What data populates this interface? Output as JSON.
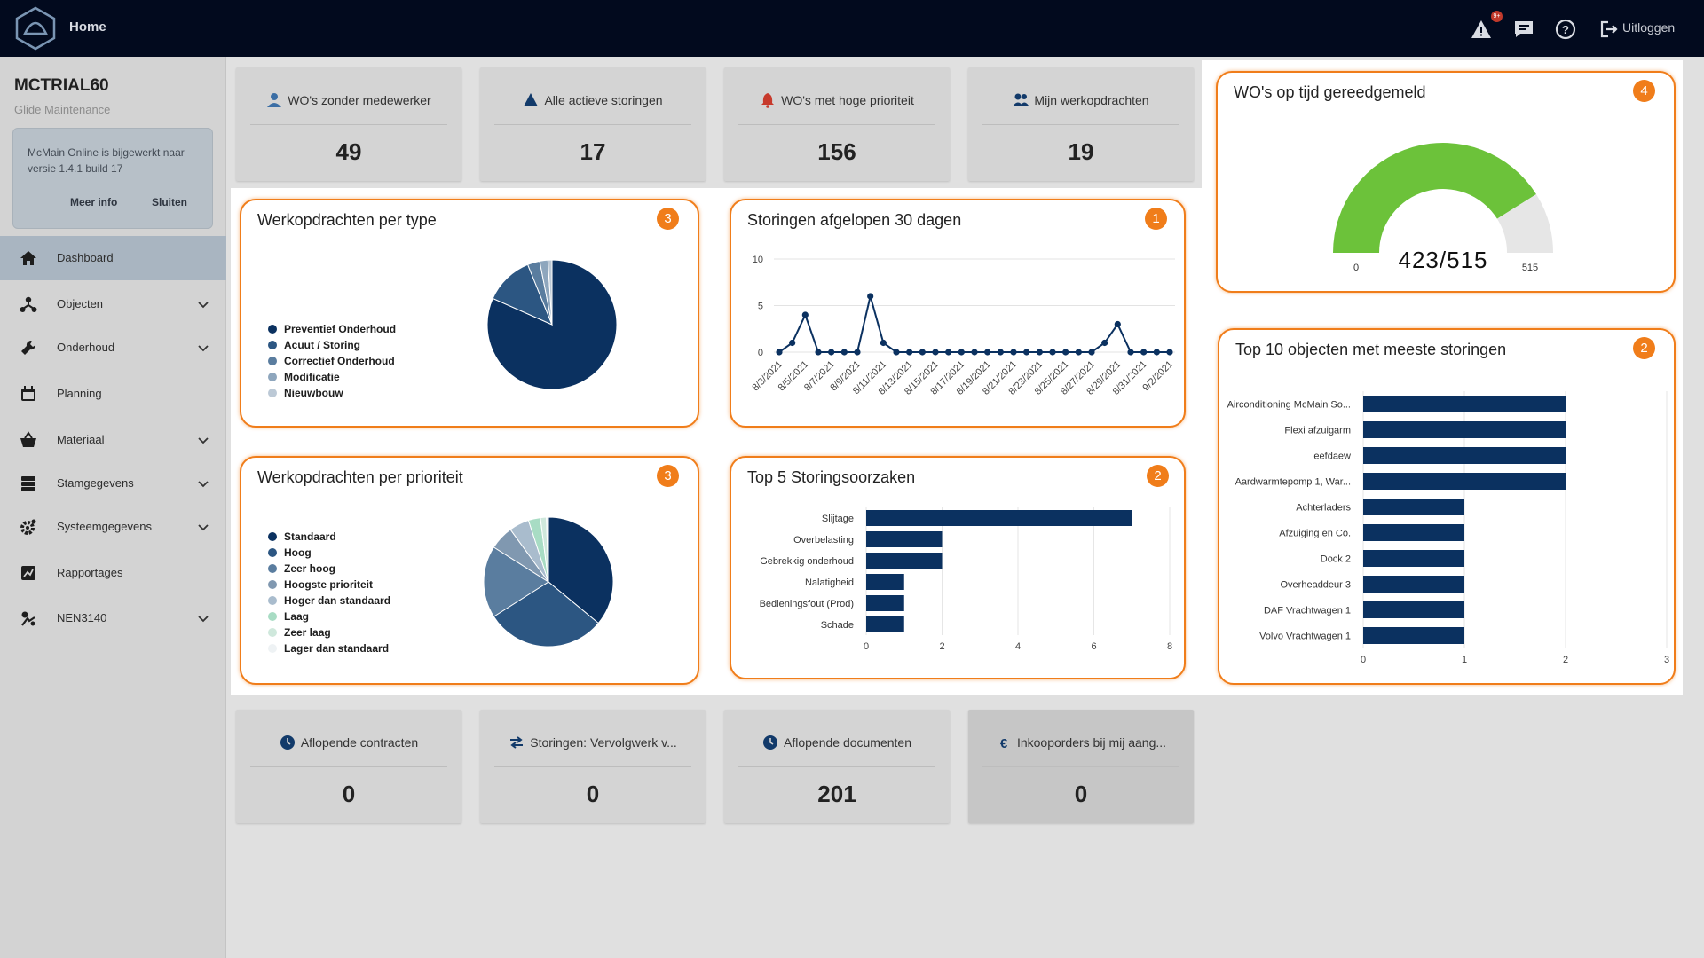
{
  "topbar": {
    "home_label": "Home",
    "notif_count": "9+",
    "logout_label": "Uitloggen"
  },
  "sidebar": {
    "org_name": "MCTRIAL60",
    "org_sub": "Glide Maintenance",
    "notice": {
      "text": "McMain Online is bijgewerkt naar versie 1.4.1 build 17",
      "more_label": "Meer info",
      "close_label": "Sluiten"
    },
    "items": [
      {
        "label": "Dashboard",
        "icon": "home-icon"
      },
      {
        "label": "Objecten",
        "icon": "hierarchy-icon"
      },
      {
        "label": "Onderhoud",
        "icon": "wrench-icon"
      },
      {
        "label": "Planning",
        "icon": "calendar-icon"
      },
      {
        "label": "Materiaal",
        "icon": "basket-icon"
      },
      {
        "label": "Stamgegevens",
        "icon": "database-icon"
      },
      {
        "label": "Systeemgegevens",
        "icon": "gear-icon"
      },
      {
        "label": "Rapportages",
        "icon": "report-icon"
      },
      {
        "label": "NEN3140",
        "icon": "nen-icon"
      }
    ]
  },
  "kpis_top": [
    {
      "title": "WO's zonder medewerker",
      "value": "49",
      "icon": "user-icon"
    },
    {
      "title": "Alle actieve storingen",
      "value": "17",
      "icon": "warning-icon"
    },
    {
      "title": "WO's met hoge prioriteit",
      "value": "156",
      "icon": "bell-icon"
    },
    {
      "title": "Mijn werkopdrachten",
      "value": "19",
      "icon": "people-icon"
    }
  ],
  "kpis_bottom": [
    {
      "title": "Aflopende contracten",
      "value": "0",
      "icon": "clock-icon"
    },
    {
      "title": "Storingen: Vervolgwerk v...",
      "value": "0",
      "icon": "arrows-icon"
    },
    {
      "title": "Aflopende documenten",
      "value": "201",
      "icon": "clock-icon"
    },
    {
      "title": "Inkooporders bij mij aang...",
      "value": "0",
      "icon": "euro-icon"
    }
  ],
  "cards": {
    "type": {
      "title": "Werkopdrachten per type",
      "badge": "3"
    },
    "storingen": {
      "title": "Storingen afgelopen 30 dagen",
      "badge": "1"
    },
    "ontime": {
      "title": "WO's op tijd gereedgemeld",
      "badge": "4"
    },
    "prioriteit": {
      "title": "Werkopdrachten per prioriteit",
      "badge": "3"
    },
    "oorzaken": {
      "title": "Top 5 Storingsoorzaken",
      "badge": "2"
    },
    "top10": {
      "title": "Top 10 objecten met meeste storingen",
      "badge": "2"
    }
  },
  "colors": {
    "accent": "#f07d1a",
    "navy": "#0b3160",
    "topbar": "#020a1e",
    "gauge_green": "#6cc23a"
  },
  "chart_data": [
    {
      "id": "type",
      "type": "pie",
      "title": "Werkopdrachten per type",
      "categories": [
        "Preventief Onderhoud",
        "Acuut / Storing",
        "Correctief Onderhoud",
        "Modificatie",
        "Nieuwbouw"
      ],
      "values": [
        80,
        12,
        3,
        2,
        1
      ],
      "colors": [
        "#0b3160",
        "#2c5682",
        "#5a7d9f",
        "#8ea6bd",
        "#bcc9d6"
      ]
    },
    {
      "id": "storingen",
      "type": "line",
      "title": "Storingen afgelopen 30 dagen",
      "x": [
        "8/3/2021",
        "8/4/2021",
        "8/5/2021",
        "8/6/2021",
        "8/7/2021",
        "8/8/2021",
        "8/9/2021",
        "8/10/2021",
        "8/11/2021",
        "8/12/2021",
        "8/13/2021",
        "8/14/2021",
        "8/15/2021",
        "8/16/2021",
        "8/17/2021",
        "8/18/2021",
        "8/19/2021",
        "8/20/2021",
        "8/21/2021",
        "8/22/2021",
        "8/23/2021",
        "8/24/2021",
        "8/25/2021",
        "8/26/2021",
        "8/27/2021",
        "8/28/2021",
        "8/29/2021",
        "8/30/2021",
        "8/31/2021",
        "9/1/2021",
        "9/2/2021"
      ],
      "xticks": [
        "8/3/2021",
        "8/5/2021",
        "8/7/2021",
        "8/9/2021",
        "8/11/2021",
        "8/13/2021",
        "8/15/2021",
        "8/17/2021",
        "8/19/2021",
        "8/21/2021",
        "8/23/2021",
        "8/25/2021",
        "8/27/2021",
        "8/29/2021",
        "8/31/2021",
        "9/2/2021"
      ],
      "values": [
        0,
        1,
        4,
        0,
        0,
        0,
        0,
        6,
        1,
        0,
        0,
        0,
        0,
        0,
        0,
        0,
        0,
        0,
        0,
        0,
        0,
        0,
        0,
        0,
        0,
        1,
        3,
        0,
        0,
        0,
        0
      ],
      "ylim": [
        0,
        10
      ],
      "yticks": [
        0,
        5,
        10
      ]
    },
    {
      "id": "ontime",
      "type": "gauge",
      "title": "WO's op tijd gereedgemeld",
      "value": 423,
      "max": 515,
      "min_label": "0",
      "max_label": "515",
      "display": "423/515"
    },
    {
      "id": "prioriteit",
      "type": "pie",
      "title": "Werkopdrachten per prioriteit",
      "categories": [
        "Standaard",
        "Hoog",
        "Zeer hoog",
        "Hoogste prioriteit",
        "Hoger dan standaard",
        "Laag",
        "Zeer laag",
        "Lager dan standaard"
      ],
      "values": [
        36,
        30,
        18,
        6,
        5,
        3,
        1.5,
        0.5
      ],
      "colors": [
        "#0b3160",
        "#2c5682",
        "#5a7d9f",
        "#8098b0",
        "#a9bccd",
        "#a8dcc4",
        "#cfe8dc",
        "#eef2f4"
      ]
    },
    {
      "id": "oorzaken",
      "type": "bar",
      "orientation": "horizontal",
      "title": "Top 5 Storingsoorzaken",
      "categories": [
        "Slijtage",
        "Overbelasting",
        "Gebrekkig onderhoud",
        "Nalatigheid",
        "Bedieningsfout (Prod)",
        "Schade"
      ],
      "values": [
        7,
        2,
        2,
        1,
        1,
        1
      ],
      "xlim": [
        0,
        8
      ],
      "xticks": [
        0,
        2,
        4,
        6,
        8
      ]
    },
    {
      "id": "top10",
      "type": "bar",
      "orientation": "horizontal",
      "title": "Top 10 objecten met meeste storingen",
      "categories": [
        "Airconditioning McMain So...",
        "Flexi afzuigarm",
        "eefdaew",
        "Aardwarmtepomp 1, War...",
        "Achterladers",
        "Afzuiging en Co.",
        "Dock 2",
        "Overheaddeur 3",
        "DAF Vrachtwagen 1",
        "Volvo Vrachtwagen 1"
      ],
      "values": [
        2,
        2,
        2,
        2,
        1,
        1,
        1,
        1,
        1,
        1
      ],
      "xlim": [
        0,
        3
      ],
      "xticks": [
        0,
        1,
        2,
        3
      ]
    }
  ]
}
